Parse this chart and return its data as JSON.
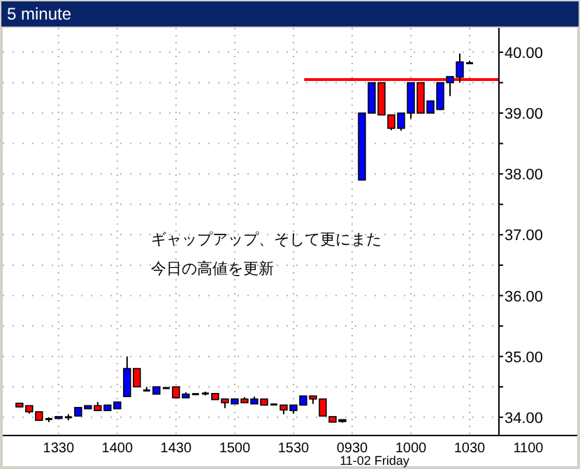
{
  "chart_data": {
    "type": "candlestick",
    "title": "5 minute",
    "categories": [
      null,
      null,
      null,
      null,
      "1330",
      null,
      null,
      null,
      null,
      null,
      "1400",
      null,
      null,
      null,
      null,
      null,
      "1430",
      null,
      null,
      null,
      null,
      null,
      "1500",
      null,
      null,
      null,
      null,
      null,
      "1530",
      null,
      null,
      null,
      null,
      null,
      "0930",
      null,
      null,
      null,
      null,
      null,
      "1000",
      null,
      null,
      null,
      null,
      null,
      "1030",
      null,
      null,
      null,
      null,
      null,
      "1100"
    ],
    "ohlc": [
      [
        34.23,
        34.23,
        34.17,
        34.17
      ],
      [
        34.19,
        34.19,
        34.06,
        34.09
      ],
      [
        34.09,
        34.09,
        33.95,
        33.95
      ],
      [
        33.97,
        34.0,
        33.92,
        33.97
      ],
      [
        33.98,
        34.01,
        33.98,
        34.01
      ],
      [
        34.0,
        34.05,
        33.95,
        34.0
      ],
      [
        34.02,
        34.16,
        34.02,
        34.16
      ],
      [
        34.14,
        34.19,
        34.14,
        34.19
      ],
      [
        34.19,
        34.25,
        34.11,
        34.11
      ],
      [
        34.11,
        34.2,
        34.11,
        34.2
      ],
      [
        34.14,
        34.25,
        34.14,
        34.25
      ],
      [
        34.34,
        35.0,
        34.34,
        34.8
      ],
      [
        34.8,
        34.8,
        34.5,
        34.5
      ],
      [
        34.44,
        34.5,
        34.44,
        34.44
      ],
      [
        34.38,
        34.5,
        34.38,
        34.5
      ],
      [
        34.48,
        34.49,
        34.48,
        34.48
      ],
      [
        34.5,
        34.5,
        34.32,
        34.32
      ],
      [
        34.32,
        34.41,
        34.32,
        34.38
      ],
      [
        34.38,
        34.38,
        34.38,
        34.38
      ],
      [
        34.39,
        34.42,
        34.36,
        34.39
      ],
      [
        34.39,
        34.39,
        34.29,
        34.29
      ],
      [
        34.3,
        34.3,
        34.15,
        34.24
      ],
      [
        34.22,
        34.3,
        34.22,
        34.3
      ],
      [
        34.3,
        34.33,
        34.24,
        34.24
      ],
      [
        34.22,
        34.34,
        34.22,
        34.3
      ],
      [
        34.3,
        34.3,
        34.2,
        34.2
      ],
      [
        34.22,
        34.22,
        34.2,
        34.2
      ],
      [
        34.2,
        34.2,
        34.05,
        34.12
      ],
      [
        34.11,
        34.2,
        34.06,
        34.2
      ],
      [
        34.2,
        34.35,
        34.2,
        34.35
      ],
      [
        34.35,
        34.35,
        34.22,
        34.3
      ],
      [
        34.3,
        34.3,
        34.02,
        34.02
      ],
      [
        34.01,
        34.01,
        33.92,
        33.92
      ],
      [
        33.96,
        33.96,
        33.91,
        33.93
      ],
      null,
      [
        37.9,
        39.0,
        37.9,
        39.0
      ],
      [
        39.0,
        39.5,
        39.0,
        39.5
      ],
      [
        39.5,
        39.5,
        38.97,
        38.97
      ],
      [
        38.97,
        38.97,
        38.72,
        38.75
      ],
      [
        38.75,
        39.0,
        38.71,
        39.0
      ],
      [
        39.0,
        39.5,
        38.91,
        39.5
      ],
      [
        39.5,
        39.5,
        39.0,
        39.0
      ],
      [
        39.0,
        39.2,
        39.0,
        39.2
      ],
      [
        39.06,
        39.5,
        39.05,
        39.5
      ],
      [
        39.5,
        39.6,
        39.28,
        39.6
      ],
      [
        39.59,
        39.98,
        39.5,
        39.84
      ],
      [
        39.82,
        39.86,
        39.82,
        39.82
      ],
      null,
      null,
      null,
      null,
      null,
      null
    ],
    "colors": [
      "#ff0000",
      "#ff0000",
      "#ff0000",
      "#000000",
      "#0000ff",
      "#000000",
      "#0000ff",
      "#0000ff",
      "#ff0000",
      "#0000ff",
      "#0000ff",
      "#0000ff",
      "#ff0000",
      "#000000",
      "#0000ff",
      "#000000",
      "#ff0000",
      "#0000ff",
      "#000000",
      "#000000",
      "#ff0000",
      "#ff0000",
      "#0000ff",
      "#ff0000",
      "#0000ff",
      "#ff0000",
      "#000000",
      "#ff0000",
      "#0000ff",
      "#0000ff",
      "#ff0000",
      "#ff0000",
      "#ff0000",
      "#000000",
      null,
      "#0000ff",
      "#0000ff",
      "#ff0000",
      "#ff0000",
      "#0000ff",
      "#0000ff",
      "#ff0000",
      "#0000ff",
      "#0000ff",
      "#0000ff",
      "#0000ff",
      "#000000",
      null,
      null,
      null,
      null,
      null,
      null
    ],
    "ylim": [
      33.7,
      40.4
    ],
    "yticks": [
      {
        "value": 34,
        "label": "34.00"
      },
      {
        "value": 34.5,
        "label": null
      },
      {
        "value": 35,
        "label": "35.00"
      },
      {
        "value": 35.5,
        "label": null
      },
      {
        "value": 36,
        "label": "36.00"
      },
      {
        "value": 36.5,
        "label": null
      },
      {
        "value": 37,
        "label": "37.00"
      },
      {
        "value": 37.5,
        "label": null
      },
      {
        "value": 38,
        "label": "38.00"
      },
      {
        "value": 38.5,
        "label": null
      },
      {
        "value": 39,
        "label": "39.00"
      },
      {
        "value": 39.5,
        "label": null
      },
      {
        "value": 40,
        "label": "40.00"
      }
    ],
    "grid": true,
    "ref_lines": [
      {
        "axis": "y",
        "value": 39.55,
        "color": "#ff0000"
      }
    ],
    "annotations": [
      "ギャップアップ、そして更にまた",
      "今日の高値を更新",
      "11-02 Friday"
    ]
  }
}
